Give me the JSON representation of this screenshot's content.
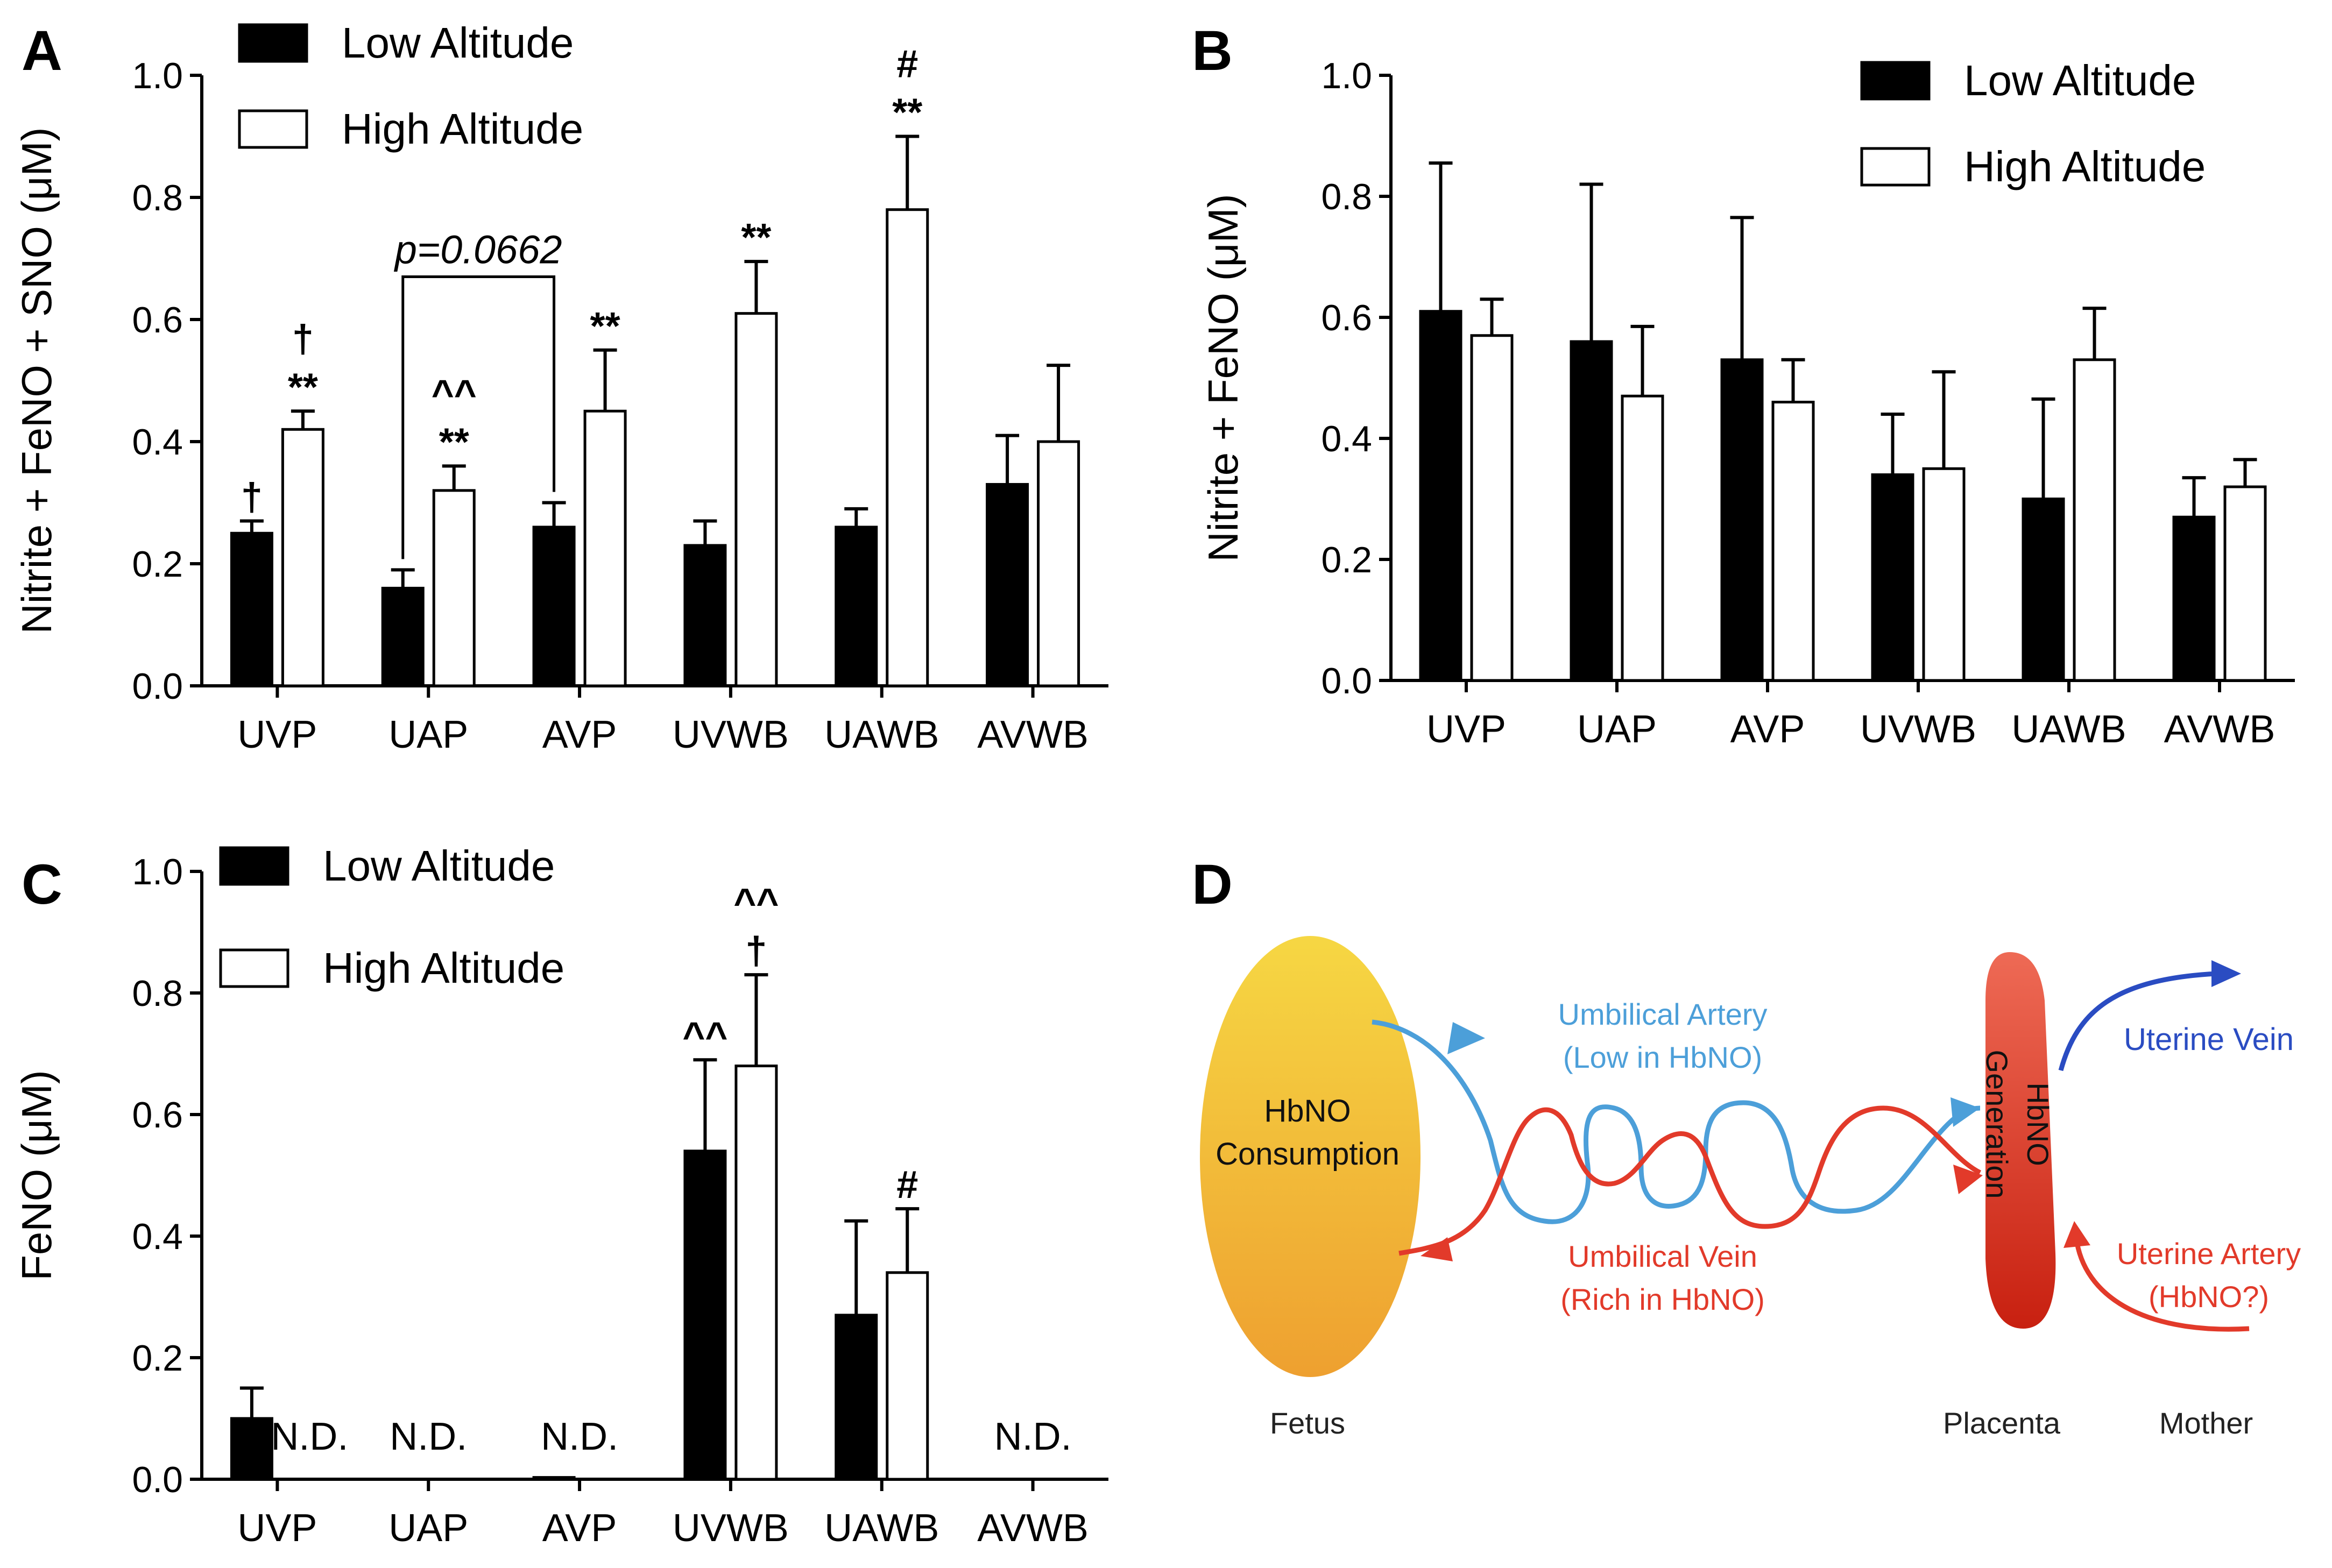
{
  "chart_data": [
    {
      "panel": "A",
      "type": "bar",
      "title": "",
      "ylabel": "Nitrite + FeNO + SNO  (μM)",
      "xlabel": "",
      "ylim": [
        0,
        1.0
      ],
      "yticks": [
        "0.0",
        "0.2",
        "0.4",
        "0.6",
        "0.8",
        "1.0"
      ],
      "categories": [
        "UVP",
        "UAP",
        "AVP",
        "UVWB",
        "UAWB",
        "AVWB"
      ],
      "series": [
        {
          "name": "Low Altitude",
          "fill": "#000000",
          "values": [
            0.25,
            0.16,
            0.26,
            0.23,
            0.26,
            0.33
          ],
          "errors": [
            0.02,
            0.03,
            0.04,
            0.04,
            0.03,
            0.08
          ]
        },
        {
          "name": "High Altitude",
          "fill": "#ffffff",
          "values": [
            0.42,
            0.32,
            0.45,
            0.61,
            0.78,
            0.4
          ],
          "errors": [
            0.03,
            0.04,
            0.1,
            0.085,
            0.12,
            0.125
          ]
        }
      ],
      "legend_position": "top-left",
      "annotations": [
        {
          "category": 0,
          "series": 0,
          "lines": [
            "†"
          ]
        },
        {
          "category": 0,
          "series": 1,
          "lines": [
            "†",
            "**"
          ]
        },
        {
          "category": 1,
          "series": 1,
          "lines": [
            "^^",
            "**"
          ]
        },
        {
          "category": 2,
          "series": 1,
          "lines": [
            "**"
          ]
        },
        {
          "category": 3,
          "series": 1,
          "lines": [
            "**"
          ]
        },
        {
          "category": 4,
          "series": 1,
          "lines": [
            "#",
            "**"
          ]
        }
      ],
      "bracket": {
        "from_category": 1,
        "to_category": 2,
        "label": "p=0.0662"
      }
    },
    {
      "panel": "B",
      "type": "bar",
      "title": "",
      "ylabel": "Nitrite + FeNO  (μM)",
      "xlabel": "",
      "ylim": [
        0,
        1.0
      ],
      "yticks": [
        "0.0",
        "0.2",
        "0.4",
        "0.6",
        "0.8",
        "1.0"
      ],
      "categories": [
        "UVP",
        "UAP",
        "AVP",
        "UVWB",
        "UAWB",
        "AVWB"
      ],
      "series": [
        {
          "name": "Low Altitude",
          "fill": "#000000",
          "values": [
            0.61,
            0.56,
            0.53,
            0.34,
            0.3,
            0.27
          ],
          "errors": [
            0.245,
            0.26,
            0.235,
            0.1,
            0.165,
            0.065
          ]
        },
        {
          "name": "High Altitude",
          "fill": "#ffffff",
          "values": [
            0.57,
            0.47,
            0.46,
            0.35,
            0.53,
            0.32
          ],
          "errors": [
            0.06,
            0.115,
            0.07,
            0.16,
            0.085,
            0.045
          ]
        }
      ],
      "legend_position": "top-right",
      "annotations": []
    },
    {
      "panel": "C",
      "type": "bar",
      "title": "",
      "ylabel": "FeNO  (μM)",
      "xlabel": "",
      "ylim": [
        0,
        1.0
      ],
      "yticks": [
        "0.0",
        "0.2",
        "0.4",
        "0.6",
        "0.8",
        "1.0"
      ],
      "categories": [
        "UVP",
        "UAP",
        "AVP",
        "UVWB",
        "UAWB",
        "AVWB"
      ],
      "series": [
        {
          "name": "Low Altitude",
          "fill": "#000000",
          "values": [
            0.1,
            0.0,
            0.003,
            0.54,
            0.27,
            0.0
          ],
          "errors": [
            0.05,
            0.0,
            0.0,
            0.15,
            0.155,
            0.0
          ]
        },
        {
          "name": "High Altitude",
          "fill": "#ffffff",
          "values": [
            0.0,
            0.0,
            0.0,
            0.68,
            0.34,
            0.0
          ],
          "errors": [
            0.0,
            0.0,
            0.0,
            0.15,
            0.105,
            0.0
          ]
        }
      ],
      "legend_position": "top-left",
      "nd_label": "N.D.",
      "nd_markers": [
        0,
        1,
        2,
        5
      ],
      "annotations": [
        {
          "category": 3,
          "series": 0,
          "lines": [
            "^^"
          ]
        },
        {
          "category": 3,
          "series": 1,
          "lines": [
            "^^",
            "†"
          ]
        },
        {
          "category": 4,
          "series": 1,
          "lines": [
            "#"
          ]
        }
      ]
    }
  ],
  "panel_d": {
    "panel_label": "D",
    "fetus_oval_label": [
      "HbNO",
      "Consumption"
    ],
    "placenta_label": [
      "HbNO",
      "Generation"
    ],
    "umbilical_artery": [
      "Umbilical Artery",
      "(Low in HbNO)"
    ],
    "umbilical_vein": [
      "Umbilical Vein",
      "(Rich in HbNO)"
    ],
    "uterine_vein": "Uterine Vein",
    "uterine_artery": [
      "Uterine Artery",
      "(HbNO?)"
    ],
    "bottom_labels": [
      "Fetus",
      "Placenta",
      "Mother"
    ],
    "colors": {
      "artery_blue": "#4c9fd9",
      "vein_red": "#e23a2a",
      "uterine_vein_blue": "#2a4cc2",
      "oval_top": "#f6d743",
      "oval_bottom": "#eea030",
      "placenta_top": "#ee6a55",
      "placenta_bottom": "#c82010"
    }
  }
}
